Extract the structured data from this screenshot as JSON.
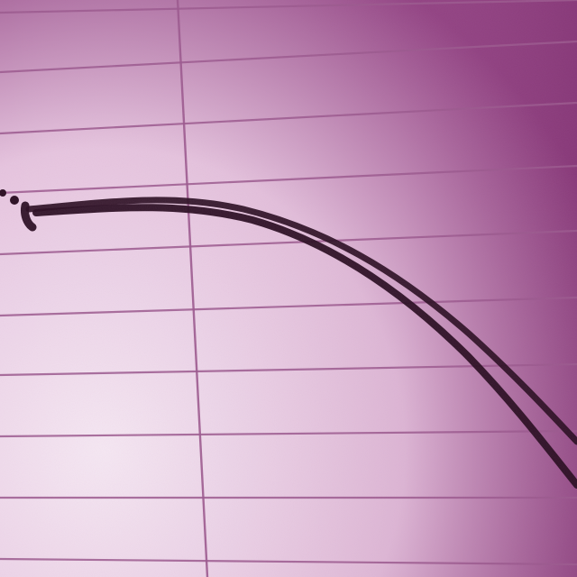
{
  "photo": {
    "subject": "ruled-paper-with-ink-curve",
    "colors": {
      "paper_light": "#f6eaf4",
      "paper_mid": "#e6c6df",
      "paper_dark": "#8e3f7f",
      "rule_line": "#9b5a8e",
      "ink": "#2a0f22"
    }
  }
}
